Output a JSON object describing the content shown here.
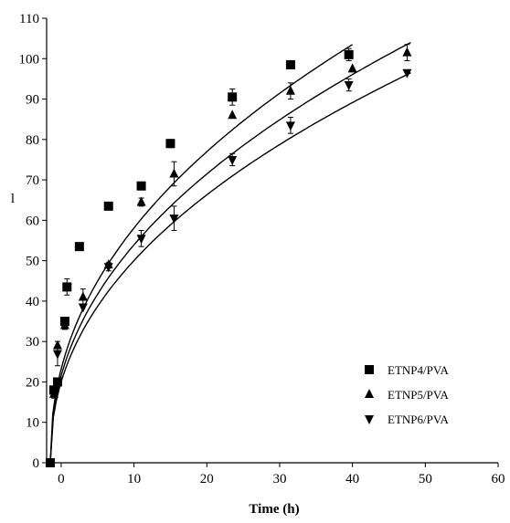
{
  "chart_data": {
    "type": "scatter",
    "title": "",
    "xlabel": "Time (h)",
    "ylabel": "l",
    "xlim": [
      -2,
      60
    ],
    "ylim": [
      0,
      110
    ],
    "xticks": [
      0,
      10,
      20,
      30,
      40,
      50,
      60
    ],
    "yticks": [
      0,
      10,
      20,
      30,
      40,
      50,
      60,
      70,
      80,
      90,
      100,
      110
    ],
    "grid": false,
    "legend_position": "bottom-right",
    "series": [
      {
        "name": "ETNP4/PVA",
        "marker": "square",
        "x": [
          -1.5,
          -1,
          -0.5,
          0.5,
          0.8,
          2.5,
          6.5,
          11,
          15,
          23.5,
          31.5,
          39.5
        ],
        "y": [
          0,
          18,
          20,
          35,
          43.5,
          53.5,
          63.5,
          68.5,
          79,
          90.5,
          98.5,
          101
        ],
        "err": [
          0,
          0,
          0,
          0,
          2,
          0,
          0,
          0,
          1,
          2,
          0,
          1.5
        ],
        "fit": {
          "x0": -1.5,
          "x1": 40,
          "y1": 103.5
        }
      },
      {
        "name": "ETNP5/PVA",
        "marker": "triangle-up",
        "x": [
          -1,
          -0.5,
          0.5,
          3,
          6.5,
          11,
          15.5,
          23.5,
          31.5,
          40,
          47.5
        ],
        "y": [
          17,
          29,
          34,
          41,
          49,
          64.5,
          71.5,
          86,
          92,
          97.5,
          101.5
        ],
        "err": [
          1,
          0,
          1,
          2,
          0,
          1,
          3,
          0,
          2,
          0,
          2
        ],
        "fit": {
          "x0": -1.5,
          "x1": 48,
          "y1": 104
        }
      },
      {
        "name": "ETNP6/PVA",
        "marker": "triangle-down",
        "x": [
          -0.5,
          3,
          6.5,
          11,
          15.5,
          23.5,
          31.5,
          39.5,
          47.5
        ],
        "y": [
          27,
          38.5,
          48.5,
          55.5,
          60.5,
          75,
          83.5,
          93.5,
          96.5
        ],
        "err": [
          3,
          0,
          1,
          2,
          3,
          1.5,
          2,
          1.5,
          0
        ],
        "fit": {
          "x0": -1.5,
          "x1": 48,
          "y1": 96.5
        }
      }
    ]
  },
  "colors": {
    "markers": "#000000",
    "background": "#ffffff"
  }
}
